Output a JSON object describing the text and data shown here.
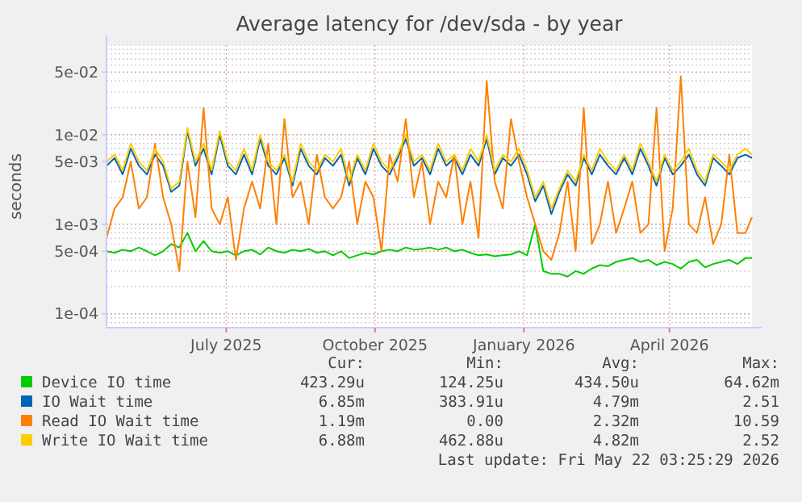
{
  "chart_data": {
    "type": "line",
    "title": "Average latency for /dev/sda - by year",
    "ylabel": "seconds",
    "log": "y",
    "grid": true,
    "legend": "bottom",
    "ylim": [
      7e-05,
      0.1
    ],
    "yticks": [
      {
        "value": 0.05,
        "label": "5e-02"
      },
      {
        "value": 0.01,
        "label": "1e-02"
      },
      {
        "value": 0.005,
        "label": "5e-03"
      },
      {
        "value": 0.001,
        "label": "1e-03"
      },
      {
        "value": 0.0005,
        "label": "5e-04"
      },
      {
        "value": 0.0001,
        "label": "1e-04"
      }
    ],
    "xlim": [
      "2025-04-18",
      "2026-05-22"
    ],
    "xticks": [
      {
        "value": "2025-07-01",
        "label": "July 2025"
      },
      {
        "value": "2025-10-01",
        "label": "October 2025"
      },
      {
        "value": "2026-01-01",
        "label": "January 2026"
      },
      {
        "value": "2026-04-01",
        "label": "April 2026"
      }
    ],
    "x": [
      "2025-04-18",
      "2025-04-23",
      "2025-04-28",
      "2025-05-03",
      "2025-05-08",
      "2025-05-13",
      "2025-05-18",
      "2025-05-23",
      "2025-05-28",
      "2025-06-02",
      "2025-06-07",
      "2025-06-12",
      "2025-06-17",
      "2025-06-22",
      "2025-06-27",
      "2025-07-02",
      "2025-07-07",
      "2025-07-12",
      "2025-07-17",
      "2025-07-22",
      "2025-07-27",
      "2025-08-01",
      "2025-08-06",
      "2025-08-11",
      "2025-08-16",
      "2025-08-21",
      "2025-08-26",
      "2025-08-31",
      "2025-09-05",
      "2025-09-10",
      "2025-09-15",
      "2025-09-20",
      "2025-09-25",
      "2025-09-30",
      "2025-10-05",
      "2025-10-10",
      "2025-10-15",
      "2025-10-20",
      "2025-10-25",
      "2025-10-30",
      "2025-11-04",
      "2025-11-09",
      "2025-11-14",
      "2025-11-19",
      "2025-11-24",
      "2025-11-29",
      "2025-12-04",
      "2025-12-09",
      "2025-12-14",
      "2025-12-19",
      "2025-12-24",
      "2025-12-29",
      "2026-01-03",
      "2026-01-08",
      "2026-01-13",
      "2026-01-18",
      "2026-01-23",
      "2026-01-28",
      "2026-02-02",
      "2026-02-07",
      "2026-02-12",
      "2026-02-17",
      "2026-02-22",
      "2026-02-27",
      "2026-03-04",
      "2026-03-09",
      "2026-03-14",
      "2026-03-19",
      "2026-03-24",
      "2026-03-29",
      "2026-04-03",
      "2026-04-08",
      "2026-04-13",
      "2026-04-18",
      "2026-04-23",
      "2026-04-28",
      "2026-05-03",
      "2026-05-08",
      "2026-05-13",
      "2026-05-18",
      "2026-05-22"
    ],
    "series": [
      {
        "name": "Device IO time",
        "color": "#00cc00",
        "values": [
          0.0005,
          0.00048,
          0.00052,
          0.0005,
          0.00055,
          0.0005,
          0.00045,
          0.0005,
          0.0006,
          0.00055,
          0.0008,
          0.0005,
          0.00065,
          0.0005,
          0.00048,
          0.0005,
          0.00045,
          0.0005,
          0.00052,
          0.00046,
          0.00055,
          0.0005,
          0.00048,
          0.00052,
          0.0005,
          0.00053,
          0.00048,
          0.0005,
          0.00045,
          0.0005,
          0.00042,
          0.00045,
          0.00048,
          0.00046,
          0.0005,
          0.00052,
          0.0005,
          0.00055,
          0.00052,
          0.00053,
          0.00055,
          0.00052,
          0.00055,
          0.0005,
          0.00052,
          0.00048,
          0.00045,
          0.00046,
          0.00044,
          0.00045,
          0.00046,
          0.0005,
          0.00045,
          0.001,
          0.0003,
          0.00028,
          0.00028,
          0.00026,
          0.0003,
          0.00028,
          0.00032,
          0.00035,
          0.00034,
          0.00038,
          0.0004,
          0.00042,
          0.00038,
          0.0004,
          0.00035,
          0.00038,
          0.00036,
          0.00032,
          0.00038,
          0.0004,
          0.00033,
          0.00036,
          0.00038,
          0.0004,
          0.00036,
          0.00042,
          0.00042
        ]
      },
      {
        "name": "IO Wait time",
        "color": "#0066b3",
        "values": [
          0.0045,
          0.0055,
          0.0036,
          0.007,
          0.0045,
          0.0036,
          0.006,
          0.0045,
          0.0023,
          0.0027,
          0.011,
          0.0045,
          0.007,
          0.0036,
          0.01,
          0.0045,
          0.0036,
          0.006,
          0.0036,
          0.009,
          0.0045,
          0.0036,
          0.0055,
          0.0027,
          0.007,
          0.0045,
          0.0036,
          0.0055,
          0.0045,
          0.006,
          0.0027,
          0.0055,
          0.0036,
          0.007,
          0.0045,
          0.0036,
          0.0055,
          0.009,
          0.0045,
          0.0055,
          0.0036,
          0.007,
          0.0045,
          0.0055,
          0.0036,
          0.006,
          0.0045,
          0.009,
          0.0036,
          0.0055,
          0.0045,
          0.006,
          0.0036,
          0.0018,
          0.0027,
          0.0013,
          0.0023,
          0.0036,
          0.0027,
          0.0055,
          0.0036,
          0.006,
          0.0045,
          0.0036,
          0.0055,
          0.0036,
          0.007,
          0.0045,
          0.0027,
          0.0055,
          0.0036,
          0.0045,
          0.006,
          0.0036,
          0.0027,
          0.0055,
          0.0045,
          0.0036,
          0.0055,
          0.006,
          0.0055
        ]
      },
      {
        "name": "Read IO Wait time",
        "color": "#ff8000",
        "values": [
          0.0007,
          0.0015,
          0.002,
          0.005,
          0.0015,
          0.002,
          0.008,
          0.002,
          0.001,
          0.0003,
          0.005,
          0.0012,
          0.02,
          0.0015,
          0.001,
          0.002,
          0.0004,
          0.0015,
          0.003,
          0.0015,
          0.008,
          0.001,
          0.015,
          0.002,
          0.003,
          0.001,
          0.006,
          0.002,
          0.0015,
          0.002,
          0.005,
          0.001,
          0.003,
          0.002,
          0.0005,
          0.006,
          0.003,
          0.015,
          0.002,
          0.005,
          0.001,
          0.003,
          0.002,
          0.006,
          0.001,
          0.003,
          0.0007,
          0.04,
          0.003,
          0.0015,
          0.015,
          0.005,
          0.002,
          0.001,
          0.0005,
          0.0004,
          0.0008,
          0.003,
          0.0005,
          0.02,
          0.0006,
          0.001,
          0.003,
          0.0008,
          0.0015,
          0.003,
          0.0008,
          0.001,
          0.02,
          0.0005,
          0.0015,
          0.045,
          0.001,
          0.0008,
          0.002,
          0.0006,
          0.001,
          0.006,
          0.0008,
          0.0008,
          0.0012
        ]
      },
      {
        "name": "Write IO Wait time",
        "color": "#ffcc00",
        "values": [
          0.005,
          0.006,
          0.004,
          0.008,
          0.005,
          0.004,
          0.007,
          0.005,
          0.0025,
          0.003,
          0.012,
          0.005,
          0.008,
          0.004,
          0.011,
          0.005,
          0.004,
          0.007,
          0.004,
          0.01,
          0.005,
          0.004,
          0.006,
          0.003,
          0.008,
          0.005,
          0.004,
          0.006,
          0.005,
          0.007,
          0.003,
          0.006,
          0.004,
          0.008,
          0.005,
          0.004,
          0.006,
          0.01,
          0.005,
          0.006,
          0.004,
          0.008,
          0.005,
          0.006,
          0.004,
          0.007,
          0.005,
          0.01,
          0.004,
          0.006,
          0.005,
          0.007,
          0.004,
          0.002,
          0.003,
          0.0015,
          0.0025,
          0.004,
          0.003,
          0.006,
          0.004,
          0.007,
          0.005,
          0.004,
          0.006,
          0.004,
          0.008,
          0.005,
          0.003,
          0.006,
          0.004,
          0.005,
          0.007,
          0.004,
          0.003,
          0.006,
          0.005,
          0.004,
          0.006,
          0.007,
          0.006
        ]
      }
    ],
    "annotations": [
      "Cur:",
      "Min:",
      "Avg:",
      "Max:",
      "423.29u",
      "124.25u",
      "434.50u",
      "64.62m",
      "6.85m",
      "383.91u",
      "4.79m",
      "2.51",
      "1.19m",
      "0.00",
      "2.32m",
      "10.59",
      "6.88m",
      "462.88u",
      "4.82m",
      "2.52",
      "Last update: Fri May 22 03:25:29 2026"
    ]
  }
}
